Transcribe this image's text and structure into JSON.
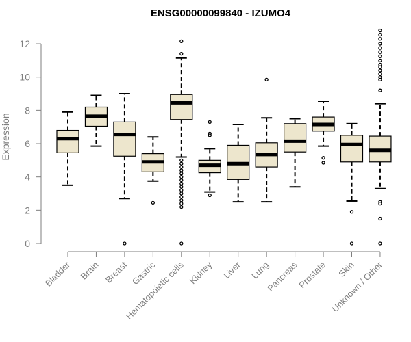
{
  "chart_data": {
    "type": "box",
    "title": "ENSG00000099840 - IZUMO4",
    "xlabel": "",
    "ylabel": "Expression",
    "ylim": [
      0,
      12.8
    ],
    "yticks": [
      0,
      2,
      4,
      6,
      8,
      10,
      12
    ],
    "colors": {
      "box_fill": "#ede6cd",
      "stroke": "#000000",
      "axis_text": "#7f7f7f"
    },
    "categories": [
      "Bladder",
      "Brain",
      "Breast",
      "Gastric",
      "Hematopoietic cells",
      "Kidney",
      "Liver",
      "Lung",
      "Pancreas",
      "Prostate",
      "Skin",
      "Unknown / Other"
    ],
    "boxes": [
      {
        "category": "Bladder",
        "whisker_low": 3.5,
        "q1": 5.45,
        "median": 6.3,
        "q3": 6.8,
        "whisker_high": 7.9,
        "outliers": []
      },
      {
        "category": "Brain",
        "whisker_low": 5.85,
        "q1": 7.05,
        "median": 7.65,
        "q3": 8.2,
        "whisker_high": 8.9,
        "outliers": []
      },
      {
        "category": "Breast",
        "whisker_low": 2.7,
        "q1": 5.25,
        "median": 6.55,
        "q3": 7.3,
        "whisker_high": 9.0,
        "outliers": [
          0.0
        ]
      },
      {
        "category": "Gastric",
        "whisker_low": 3.75,
        "q1": 4.3,
        "median": 4.9,
        "q3": 5.4,
        "whisker_high": 6.4,
        "outliers": [
          2.45
        ]
      },
      {
        "category": "Hematopoietic cells",
        "whisker_low": 5.2,
        "q1": 7.45,
        "median": 8.45,
        "q3": 8.95,
        "whisker_high": 11.15,
        "outliers": [
          12.15,
          11.4,
          5.0,
          4.8,
          4.6,
          4.4,
          4.2,
          4.0,
          3.8,
          3.6,
          3.4,
          3.2,
          3.0,
          2.8,
          2.6,
          2.4,
          2.2,
          0.0
        ]
      },
      {
        "category": "Kidney",
        "whisker_low": 3.1,
        "q1": 4.25,
        "median": 4.7,
        "q3": 5.0,
        "whisker_high": 5.7,
        "outliers": [
          7.3,
          6.6,
          6.5,
          2.9
        ]
      },
      {
        "category": "Liver",
        "whisker_low": 2.5,
        "q1": 3.85,
        "median": 4.8,
        "q3": 5.9,
        "whisker_high": 7.15,
        "outliers": []
      },
      {
        "category": "Lung",
        "whisker_low": 2.5,
        "q1": 4.6,
        "median": 5.35,
        "q3": 6.05,
        "whisker_high": 7.55,
        "outliers": [
          9.85
        ]
      },
      {
        "category": "Pancreas",
        "whisker_low": 3.4,
        "q1": 5.5,
        "median": 6.15,
        "q3": 7.2,
        "whisker_high": 7.5,
        "outliers": []
      },
      {
        "category": "Prostate",
        "whisker_low": 5.85,
        "q1": 6.75,
        "median": 7.15,
        "q3": 7.6,
        "whisker_high": 8.55,
        "outliers": [
          5.15,
          4.85
        ]
      },
      {
        "category": "Skin",
        "whisker_low": 2.55,
        "q1": 4.9,
        "median": 5.95,
        "q3": 6.5,
        "whisker_high": 7.2,
        "outliers": [
          1.9,
          0.0
        ]
      },
      {
        "category": "Unknown / Other",
        "whisker_low": 3.3,
        "q1": 4.9,
        "median": 5.6,
        "q3": 6.45,
        "whisker_high": 8.4,
        "outliers": [
          12.8,
          12.55,
          12.3,
          12.0,
          11.75,
          11.5,
          11.25,
          11.0,
          10.75,
          10.6,
          10.4,
          10.2,
          10.0,
          9.85,
          9.2,
          2.5,
          2.4,
          1.5,
          0.0
        ]
      }
    ]
  }
}
